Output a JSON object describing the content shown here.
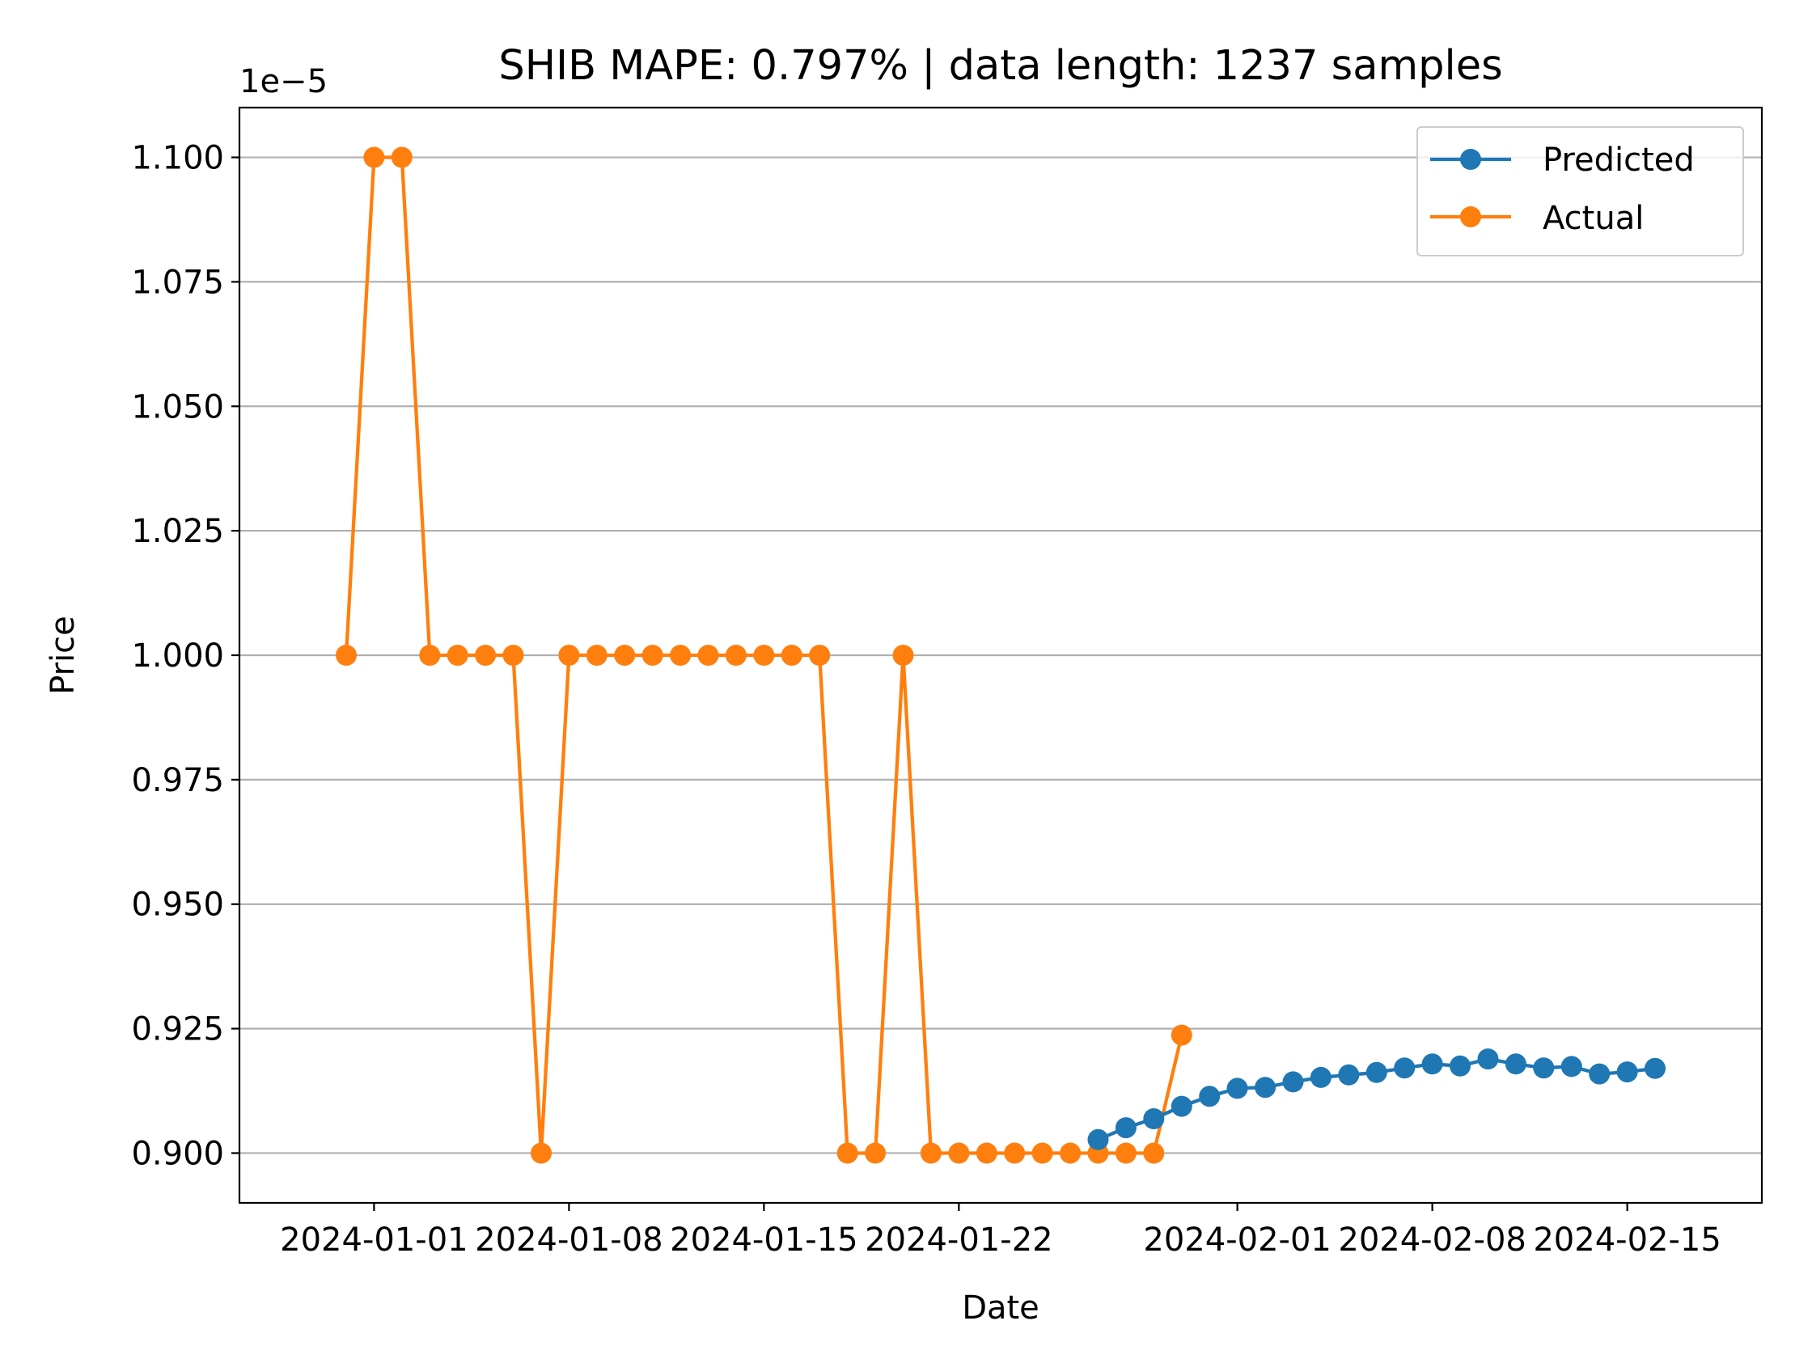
{
  "chart_data": {
    "type": "line",
    "title": "SHIB MAPE: 0.797% | data length: 1237 samples",
    "xlabel": "Date",
    "ylabel": "Price",
    "y_offset_label": "1e−5",
    "ylim": [
      0.89,
      1.11
    ],
    "xlim": [
      "2023-12-27T04:00",
      "2024-02-19T20:00"
    ],
    "x_ticks": [
      {
        "date": "2024-01-01",
        "label": "2024-01-01"
      },
      {
        "date": "2024-01-08",
        "label": "2024-01-08"
      },
      {
        "date": "2024-01-15",
        "label": "2024-01-15"
      },
      {
        "date": "2024-01-22",
        "label": "2024-01-22"
      },
      {
        "date": "2024-02-01",
        "label": "2024-02-01"
      },
      {
        "date": "2024-02-08",
        "label": "2024-02-08"
      },
      {
        "date": "2024-02-15",
        "label": "2024-02-15"
      }
    ],
    "y_ticks": [
      {
        "value": 0.9,
        "label": "0.900"
      },
      {
        "value": 0.925,
        "label": "0.925"
      },
      {
        "value": 0.95,
        "label": "0.950"
      },
      {
        "value": 0.975,
        "label": "0.975"
      },
      {
        "value": 1.0,
        "label": "1.000"
      },
      {
        "value": 1.025,
        "label": "1.025"
      },
      {
        "value": 1.05,
        "label": "1.050"
      },
      {
        "value": 1.075,
        "label": "1.075"
      },
      {
        "value": 1.1,
        "label": "1.100"
      }
    ],
    "grid": "y-axis only",
    "legend_position": "top-right",
    "series": [
      {
        "name": "Predicted",
        "color": "#1f77b4",
        "points": [
          [
            "2024-01-27",
            0.9027
          ],
          [
            "2024-01-28",
            0.9051
          ],
          [
            "2024-01-29",
            0.9069
          ],
          [
            "2024-01-30",
            0.9094
          ],
          [
            "2024-01-31",
            0.9114
          ],
          [
            "2024-02-01",
            0.913
          ],
          [
            "2024-02-02",
            0.9132
          ],
          [
            "2024-02-03",
            0.9143
          ],
          [
            "2024-02-04",
            0.9152
          ],
          [
            "2024-02-05",
            0.9157
          ],
          [
            "2024-02-06",
            0.9162
          ],
          [
            "2024-02-07",
            0.9171
          ],
          [
            "2024-02-08",
            0.9179
          ],
          [
            "2024-02-09",
            0.9175
          ],
          [
            "2024-02-10",
            0.9189
          ],
          [
            "2024-02-11",
            0.9179
          ],
          [
            "2024-02-12",
            0.9171
          ],
          [
            "2024-02-13",
            0.9174
          ],
          [
            "2024-02-14",
            0.9159
          ],
          [
            "2024-02-15",
            0.9163
          ],
          [
            "2024-02-16",
            0.917
          ]
        ]
      },
      {
        "name": "Actual",
        "color": "#ff7f0e",
        "points": [
          [
            "2023-12-31",
            1.0
          ],
          [
            "2024-01-01",
            1.1
          ],
          [
            "2024-01-02",
            1.1
          ],
          [
            "2024-01-03",
            1.0
          ],
          [
            "2024-01-04",
            1.0
          ],
          [
            "2024-01-05",
            1.0
          ],
          [
            "2024-01-06",
            1.0
          ],
          [
            "2024-01-07",
            0.9
          ],
          [
            "2024-01-08",
            1.0
          ],
          [
            "2024-01-09",
            1.0
          ],
          [
            "2024-01-10",
            1.0
          ],
          [
            "2024-01-11",
            1.0
          ],
          [
            "2024-01-12",
            1.0
          ],
          [
            "2024-01-13",
            1.0
          ],
          [
            "2024-01-14",
            1.0
          ],
          [
            "2024-01-15",
            1.0
          ],
          [
            "2024-01-16",
            1.0
          ],
          [
            "2024-01-17",
            1.0
          ],
          [
            "2024-01-18",
            0.9
          ],
          [
            "2024-01-19",
            0.9
          ],
          [
            "2024-01-20",
            1.0
          ],
          [
            "2024-01-21",
            0.9
          ],
          [
            "2024-01-22",
            0.9
          ],
          [
            "2024-01-23",
            0.9
          ],
          [
            "2024-01-24",
            0.9
          ],
          [
            "2024-01-25",
            0.9
          ],
          [
            "2024-01-26",
            0.9
          ],
          [
            "2024-01-27",
            0.9
          ],
          [
            "2024-01-28",
            0.9
          ],
          [
            "2024-01-29",
            0.9
          ],
          [
            "2024-01-30",
            0.9237
          ]
        ]
      }
    ]
  }
}
